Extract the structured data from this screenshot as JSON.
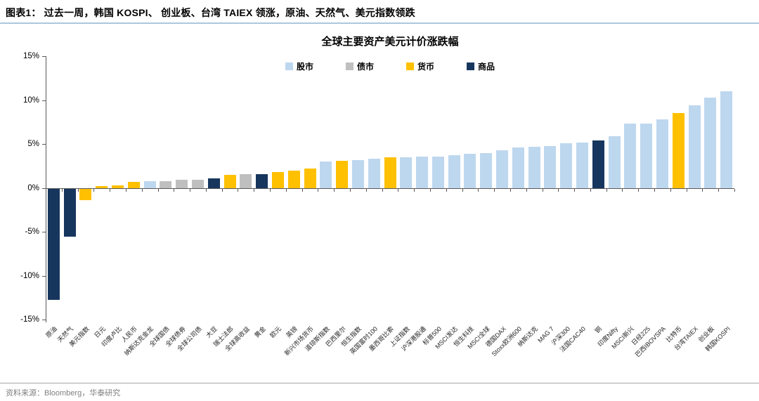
{
  "header": {
    "title": "图表1：  过去一周，韩国 KOSPI、 创业板、台湾 TAIEX 领涨，原油、天然气、美元指数领跌"
  },
  "footer": {
    "source": "资料来源：Bloomberg，华泰研究"
  },
  "chart_data": {
    "type": "bar",
    "title": "全球主要资产美元计价涨跌幅",
    "xlabel": "",
    "ylabel": "",
    "ylim": [
      -15,
      15
    ],
    "ytick_labels": [
      "15%",
      "10%",
      "5%",
      "0%",
      "-5%",
      "-10%",
      "-15%"
    ],
    "grid": false,
    "legend_position": "top-center",
    "legend": [
      {
        "label": "股市",
        "color": "#BDD7EE"
      },
      {
        "label": "债市",
        "color": "#BFBFBF"
      },
      {
        "label": "货币",
        "color": "#FFC000"
      },
      {
        "label": "商品",
        "color": "#17365D"
      }
    ],
    "bars": [
      {
        "label": "原油",
        "category": "商品",
        "value": -12.7
      },
      {
        "label": "天然气",
        "category": "商品",
        "value": -5.5
      },
      {
        "label": "美元指数",
        "category": "货币",
        "value": -1.3
      },
      {
        "label": "日元",
        "category": "货币",
        "value": 0.2
      },
      {
        "label": "印度卢比",
        "category": "货币",
        "value": 0.3
      },
      {
        "label": "人民币",
        "category": "货币",
        "value": 0.7
      },
      {
        "label": "纳斯达克金龙",
        "category": "股市",
        "value": 0.8
      },
      {
        "label": "全球国债",
        "category": "债市",
        "value": 0.8
      },
      {
        "label": "全球债券",
        "category": "债市",
        "value": 0.9
      },
      {
        "label": "全球公司债",
        "category": "债市",
        "value": 0.9
      },
      {
        "label": "大豆",
        "category": "商品",
        "value": 1.1
      },
      {
        "label": "瑞士法郎",
        "category": "货币",
        "value": 1.5
      },
      {
        "label": "全球高收益",
        "category": "债市",
        "value": 1.6
      },
      {
        "label": "黄金",
        "category": "商品",
        "value": 1.6
      },
      {
        "label": "欧元",
        "category": "货币",
        "value": 1.8
      },
      {
        "label": "英镑",
        "category": "货币",
        "value": 2.0
      },
      {
        "label": "新兴市场货币",
        "category": "货币",
        "value": 2.2
      },
      {
        "label": "道琼斯指数",
        "category": "股市",
        "value": 3.0
      },
      {
        "label": "巴西里尔",
        "category": "货币",
        "value": 3.1
      },
      {
        "label": "恒生指数",
        "category": "股市",
        "value": 3.2
      },
      {
        "label": "英国富时100",
        "category": "股市",
        "value": 3.3
      },
      {
        "label": "墨西哥比索",
        "category": "货币",
        "value": 3.5
      },
      {
        "label": "上证指数",
        "category": "股市",
        "value": 3.5
      },
      {
        "label": "沪深港股通",
        "category": "股市",
        "value": 3.6
      },
      {
        "label": "标普500",
        "category": "股市",
        "value": 3.6
      },
      {
        "label": "MSCI发达",
        "category": "股市",
        "value": 3.7
      },
      {
        "label": "恒生科技",
        "category": "股市",
        "value": 3.9
      },
      {
        "label": "MSCI全球",
        "category": "股市",
        "value": 4.0
      },
      {
        "label": "德国DAX",
        "category": "股市",
        "value": 4.3
      },
      {
        "label": "Stoxx欧洲600",
        "category": "股市",
        "value": 4.6
      },
      {
        "label": "纳斯达克",
        "category": "股市",
        "value": 4.7
      },
      {
        "label": "MAG 7",
        "category": "股市",
        "value": 4.8
      },
      {
        "label": "沪深300",
        "category": "股市",
        "value": 5.1
      },
      {
        "label": "法国CAC40",
        "category": "股市",
        "value": 5.2
      },
      {
        "label": "铜",
        "category": "商品",
        "value": 5.4
      },
      {
        "label": "印度Nifty",
        "category": "股市",
        "value": 5.9
      },
      {
        "label": "MSCI新兴",
        "category": "股市",
        "value": 7.3
      },
      {
        "label": "日经225",
        "category": "股市",
        "value": 7.3
      },
      {
        "label": "巴西IBOVSPA",
        "category": "股市",
        "value": 7.8
      },
      {
        "label": "比特币",
        "category": "货币",
        "value": 8.5
      },
      {
        "label": "台湾TAIEX",
        "category": "股市",
        "value": 9.4
      },
      {
        "label": "创业板",
        "category": "股市",
        "value": 10.3
      },
      {
        "label": "韩国KOSPI",
        "category": "股市",
        "value": 11.0
      }
    ]
  }
}
